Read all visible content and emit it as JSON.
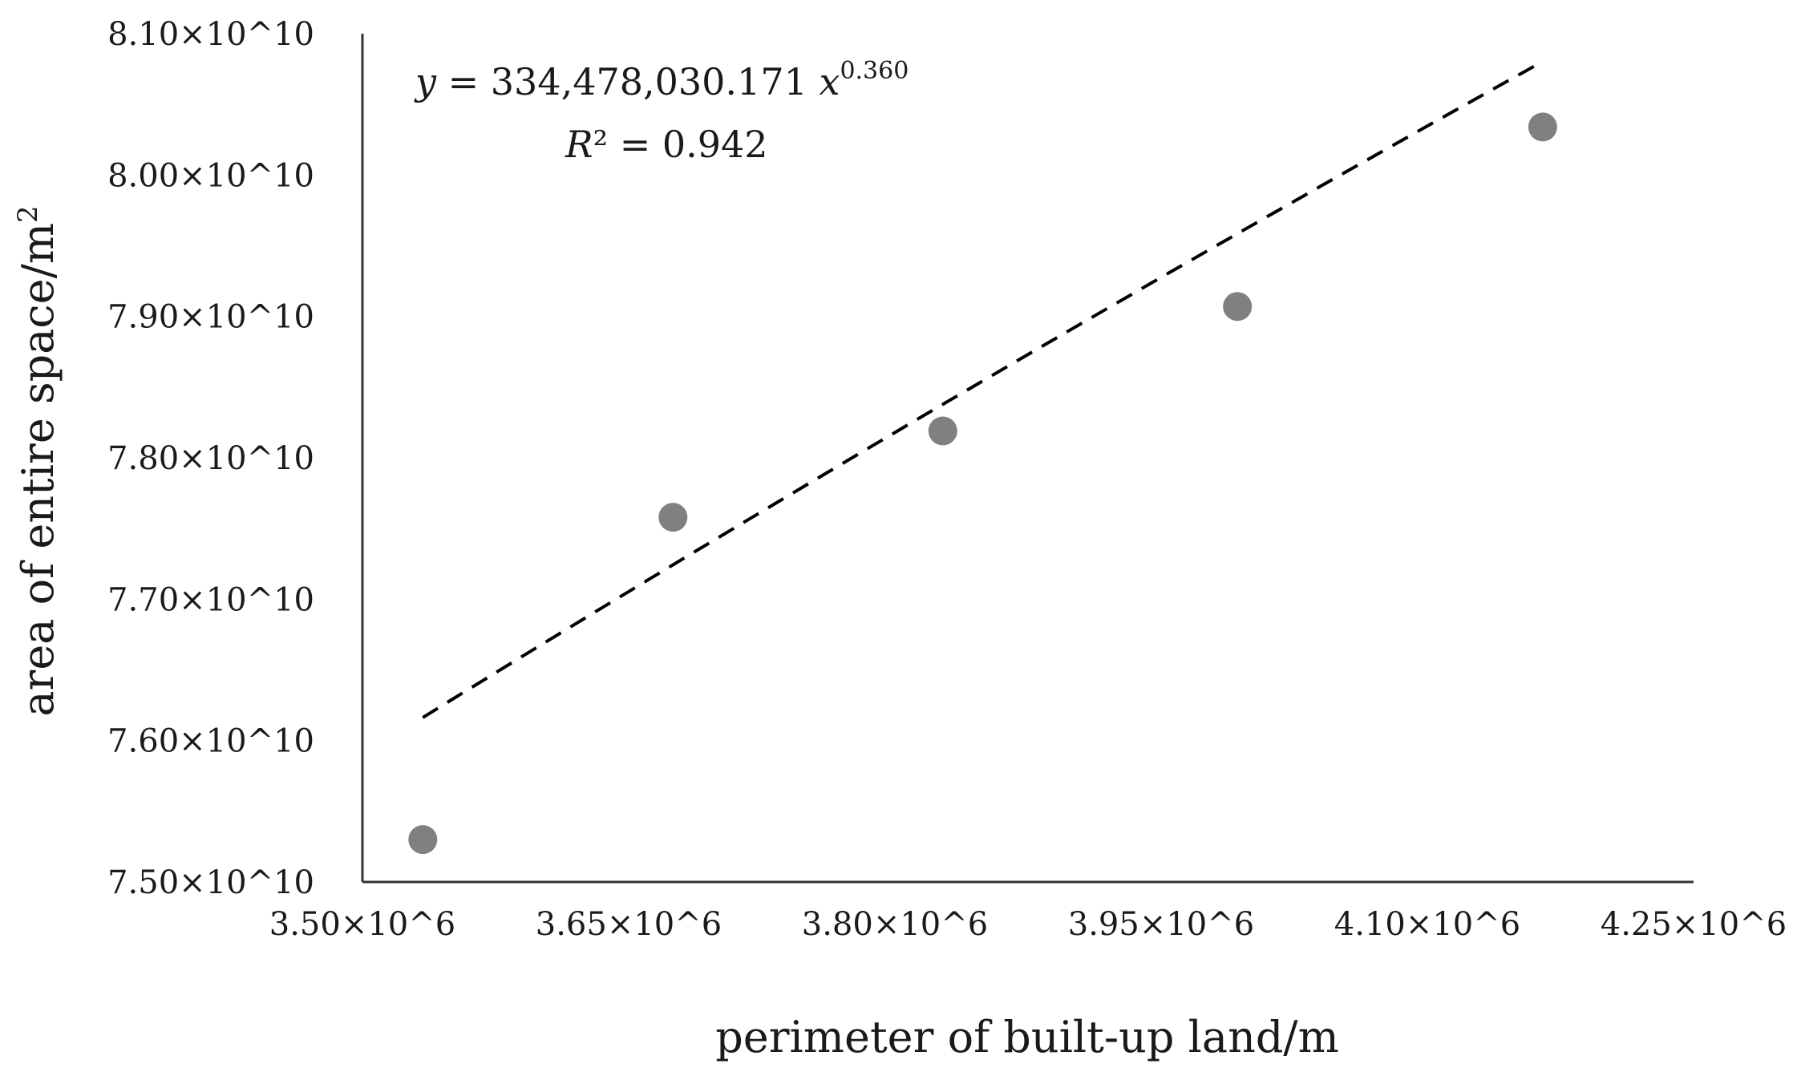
{
  "chart_data": {
    "type": "scatter",
    "xlabel": "perimeter of built-up land/m",
    "ylabel": "area of entire space/m",
    "ylabel_superscript": "2",
    "x_ticks": [
      "3.50×10^6",
      "3.65×10^6",
      "3.80×10^6",
      "3.95×10^6",
      "4.10×10^6",
      "4.25×10^6"
    ],
    "y_ticks": [
      "8.10×10^10",
      "8.00×10^10",
      "7.90×10^10",
      "7.80×10^10",
      "7.70×10^10",
      "7.60×10^10",
      "7.50×10^10"
    ],
    "xlim": [
      3500000,
      4250000
    ],
    "ylim": [
      75000000000,
      81000000000
    ],
    "grid": false,
    "legend": "none",
    "series": [
      {
        "points": [
          {
            "x": 3534000,
            "y": 75300000000
          },
          {
            "x": 3675000,
            "y": 77580000000
          },
          {
            "x": 3827000,
            "y": 78190000000
          },
          {
            "x": 3993000,
            "y": 79070000000
          },
          {
            "x": 4165000,
            "y": 80340000000
          }
        ],
        "color": "#808080"
      }
    ],
    "trendline": {
      "type": "power",
      "coefficient": 334478030.171,
      "exponent": 0.36,
      "x_range": [
        3534000,
        4165000
      ],
      "style": "dashed",
      "color": "#000000"
    },
    "annotations": {
      "equation_y": "y",
      "equation_body": " = 334,478,030.171 ",
      "equation_x": "x",
      "equation_exponent": "0.360",
      "r2_symbol": "R",
      "r2_text": "² = 0.942"
    }
  }
}
